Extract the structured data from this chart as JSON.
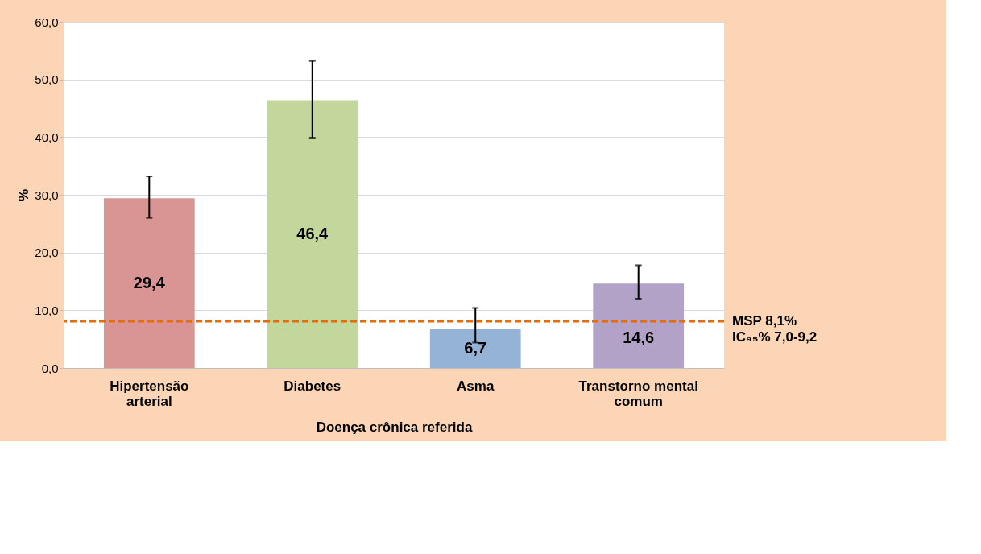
{
  "chart_data": {
    "type": "bar",
    "xlabel": "Doença crônica referida",
    "ylabel": "%",
    "categories": [
      "Hipertensão arterial",
      "Diabetes",
      "Asma",
      "Transtorno mental comum"
    ],
    "values": [
      29.4,
      46.4,
      6.7,
      14.6
    ],
    "colors": [
      "#d99594",
      "#c3d69b",
      "#95b3d7",
      "#b2a2c7"
    ],
    "value_labels": [
      "29,4",
      "46,4",
      "6,7",
      "14,6"
    ],
    "errors": [
      [
        26.0,
        33.2
      ],
      [
        39.9,
        53.2
      ],
      [
        4.4,
        10.4
      ],
      [
        12.0,
        17.8
      ]
    ],
    "ylim": [
      0,
      60
    ],
    "yticks": [
      {
        "value": 0,
        "label": "0,0"
      },
      {
        "value": 10,
        "label": "10,0"
      },
      {
        "value": 20,
        "label": "20,0"
      },
      {
        "value": 30,
        "label": "30,0"
      },
      {
        "value": 40,
        "label": "40,0"
      },
      {
        "value": 50,
        "label": "50,0"
      },
      {
        "value": 60,
        "label": "60,0"
      }
    ],
    "ref_lines": [
      {
        "axis": "y",
        "value": 8.1,
        "label": "MSP 8,1%\nIC₉₅% 7,0-9,2",
        "color": "#e46c0a",
        "line_style": "dashed"
      }
    ],
    "grid": "y",
    "legend": false
  }
}
